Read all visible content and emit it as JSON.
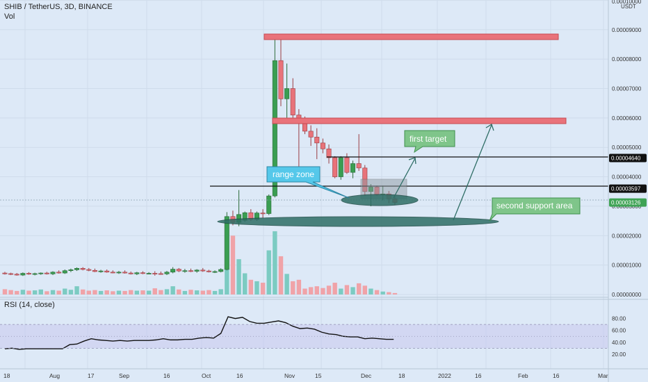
{
  "header": {
    "title": "SHIB / TetherUS, 3D, BINANCE",
    "vol_label": "Vol",
    "currency": "USDT"
  },
  "rsi": {
    "label": "RSI (14, close)"
  },
  "colors": {
    "up": "#3a9e52",
    "down": "#e8737a",
    "up_vol": "#7ccbc2",
    "down_vol": "#f0a3a8",
    "rsi_band": "#c9c9ee",
    "bg": "#dde9f7",
    "accent_green": "#7fc58a",
    "accent_cyan": "#55c8ea",
    "ellipse": "#2f6e66"
  },
  "chart_data": [
    {
      "type": "candlestick",
      "title": "SHIB / TetherUS, 3D, BINANCE",
      "y_unit": "USDT",
      "price_ticks": [
        "0.00000000",
        "0.00001000",
        "0.00002000",
        "0.00003000",
        "0.00004000",
        "0.00005000",
        "0.00006000",
        "0.00007000",
        "0.00008000",
        "0.00009000",
        "0.00010000"
      ],
      "price_labels": [
        {
          "text": "0.00004640",
          "value": 4.64e-05,
          "style": "dark"
        },
        {
          "text": "0.00003597",
          "value": 3.597e-05,
          "style": "dark"
        },
        {
          "text": "0.00003126",
          "value": 3.126e-05,
          "style": "green"
        }
      ],
      "time_ticks": [
        "18",
        "Aug",
        "17",
        "Sep",
        "16",
        "Oct",
        "16",
        "Nov",
        "15",
        "Dec",
        "18",
        "2022",
        "16",
        "Feb",
        "16",
        "Mar"
      ],
      "candles": [
        [
          7.3e-06,
          7.7e-06,
          6.8e-06,
          7.1e-06
        ],
        [
          7.1e-06,
          7.4e-06,
          6.6e-06,
          6.9e-06
        ],
        [
          6.9e-06,
          7.3e-06,
          6.4e-06,
          6.6e-06
        ],
        [
          6.6e-06,
          7.5e-06,
          6.3e-06,
          7.2e-06
        ],
        [
          7.2e-06,
          7.6e-06,
          6.7e-06,
          6.9e-06
        ],
        [
          6.9e-06,
          7.4e-06,
          6.5e-06,
          7.1e-06
        ],
        [
          7.1e-06,
          7.5e-06,
          6.7e-06,
          7.3e-06
        ],
        [
          7.3e-06,
          7.7e-06,
          6.8e-06,
          7e-06
        ],
        [
          7e-06,
          7.9e-06,
          6.6e-06,
          7.6e-06
        ],
        [
          7.6e-06,
          8.2e-06,
          7.1e-06,
          7.3e-06
        ],
        [
          7.3e-06,
          8.5e-06,
          7e-06,
          8.1e-06
        ],
        [
          8.1e-06,
          8.8e-06,
          7.6e-06,
          8.4e-06
        ],
        [
          8.4e-06,
          9.2e-06,
          8e-06,
          8.9e-06
        ],
        [
          8.9e-06,
          9.3e-06,
          8.2e-06,
          8.5e-06
        ],
        [
          8.5e-06,
          9e-06,
          7.9e-06,
          8.2e-06
        ],
        [
          8.2e-06,
          8.8e-06,
          7.6e-06,
          7.8e-06
        ],
        [
          7.8e-06,
          8.4e-06,
          7.4e-06,
          8e-06
        ],
        [
          8e-06,
          8.5e-06,
          7.4e-06,
          7.6e-06
        ],
        [
          7.6e-06,
          8.2e-06,
          7.2e-06,
          7.4e-06
        ],
        [
          7.4e-06,
          8e-06,
          7e-06,
          7.6e-06
        ],
        [
          7.6e-06,
          8.2e-06,
          7.1e-06,
          7.3e-06
        ],
        [
          7.3e-06,
          7.8e-06,
          6.8e-06,
          7e-06
        ],
        [
          7e-06,
          7.7e-06,
          6.6e-06,
          7.4e-06
        ],
        [
          7.4e-06,
          7.9e-06,
          6.9e-06,
          7.2e-06
        ],
        [
          7.2e-06,
          7.6e-06,
          6.9e-06,
          7.2e-06
        ],
        [
          7.2e-06,
          7.9e-06,
          6.4e-06,
          7.1e-06
        ],
        [
          7.1e-06,
          7.8e-06,
          6.7e-06,
          7e-06
        ],
        [
          7e-06,
          8e-06,
          6.6e-06,
          7.6e-06
        ],
        [
          7.6e-06,
          9.3e-06,
          7.2e-06,
          8.6e-06
        ],
        [
          8.6e-06,
          9e-06,
          7.6e-06,
          8e-06
        ],
        [
          8e-06,
          8.7e-06,
          7.4e-06,
          8.1e-06
        ],
        [
          8.1e-06,
          8.8e-06,
          7.6e-06,
          7.9e-06
        ],
        [
          7.9e-06,
          8.6e-06,
          7.4e-06,
          8.3e-06
        ],
        [
          8.3e-06,
          9e-06,
          7.7e-06,
          8e-06
        ],
        [
          8e-06,
          8.4e-06,
          7.5e-06,
          7.7e-06
        ],
        [
          7.7e-06,
          8.2e-06,
          7.3e-06,
          7.8e-06
        ],
        [
          7.8e-06,
          8.9e-06,
          7.5e-06,
          8.5e-06
        ],
        [
          8.5e-06,
          2.8e-05,
          8.2e-06,
          2.65e-05
        ],
        [
          2.65e-05,
          2.85e-05,
          2.35e-05,
          2.45e-05
        ],
        [
          2.45e-05,
          3.55e-05,
          2.32e-05,
          2.72e-05
        ],
        [
          2.52e-05,
          2.82e-05,
          2.47e-05,
          2.78e-05
        ],
        [
          2.78e-05,
          2.9e-05,
          2.5e-05,
          2.55e-05
        ],
        [
          2.55e-05,
          2.82e-05,
          2.5e-05,
          2.77e-05
        ],
        [
          2.77e-05,
          2.9e-05,
          2.6e-05,
          2.75e-05
        ],
        [
          2.75e-05,
          3.4e-05,
          2.7e-05,
          3.35e-05
        ],
        [
          3.35e-05,
          8.8e-05,
          3.3e-05,
          7.95e-05
        ],
        [
          7.95e-05,
          8.85e-05,
          6.4e-05,
          6.65e-05
        ],
        [
          6.65e-05,
          7.85e-05,
          6e-05,
          7e-05
        ],
        [
          7e-05,
          7.35e-05,
          5.9e-05,
          6.1e-05
        ],
        [
          6.1e-05,
          6.3e-05,
          4e-05,
          5.85e-05
        ],
        [
          5.85e-05,
          6.05e-05,
          5.45e-05,
          5.55e-05
        ],
        [
          5.55e-05,
          5.75e-05,
          5.05e-05,
          5.35e-05
        ],
        [
          5.35e-05,
          5.65e-05,
          4.6e-05,
          5.15e-05
        ],
        [
          5.15e-05,
          5.3e-05,
          4.8e-05,
          4.95e-05
        ],
        [
          4.95e-05,
          5.1e-05,
          4.45e-05,
          4.65e-05
        ],
        [
          4.65e-05,
          4.7e-05,
          3.95e-05,
          4e-05
        ],
        [
          4e-05,
          4.7e-05,
          3.9e-05,
          4.65e-05
        ],
        [
          4.65e-05,
          4.8e-05,
          4.1e-05,
          4.15e-05
        ],
        [
          4.15e-05,
          4.55e-05,
          3.95e-05,
          4.45e-05
        ],
        [
          4.45e-05,
          5.45e-05,
          4.2e-05,
          4.3e-05
        ],
        [
          4.3e-05,
          4.4e-05,
          3.35e-05,
          3.5e-05
        ],
        [
          3.5e-05,
          3.75e-05,
          3e-05,
          3.65e-05
        ],
        [
          3.65e-05,
          3.7e-05,
          3.35e-05,
          3.4e-05
        ],
        [
          3.4e-05,
          3.7e-05,
          3.2e-05,
          3.42e-05
        ],
        [
          3.42e-05,
          3.52e-05,
          3.1e-05,
          3.25e-05
        ],
        [
          3.25e-05,
          3.4e-05,
          3.05e-05,
          3.13e-05
        ]
      ],
      "volumes": [
        1.8e-06,
        1.5e-06,
        1.2e-06,
        1.6e-06,
        1.3e-06,
        1.4e-06,
        1.7e-06,
        1.1e-06,
        1.5e-06,
        1.3e-06,
        2e-06,
        1.6e-06,
        2.8e-06,
        1.7e-06,
        1.3e-06,
        1.5e-06,
        1.2e-06,
        1.4e-06,
        1.1e-06,
        1.3e-06,
        1.2e-06,
        1.5e-06,
        1.3e-06,
        1.4e-06,
        1.3e-06,
        2.1e-06,
        1.5e-06,
        1.8e-06,
        2.8e-06,
        1.7e-06,
        1.2e-06,
        1.6e-06,
        1.4e-06,
        1.3e-06,
        1.5e-06,
        1.2e-06,
        1.8e-06,
        9.5e-06,
        2e-05,
        1.2e-05,
        7.2e-06,
        5e-06,
        4.5e-06,
        4e-06,
        1.5e-05,
        2.15e-05,
        1.3e-05,
        7e-06,
        4.5e-06,
        5e-06,
        2e-06,
        2.5e-06,
        2.8e-06,
        2.2e-06,
        3e-06,
        4e-06,
        2e-06,
        3.2e-06,
        2.5e-06,
        3.8e-06,
        3e-06,
        2e-06,
        1.5e-06,
        1e-06,
        8e-07,
        5e-07
      ],
      "rsi_values": [
        29,
        30,
        28,
        29,
        29,
        29,
        29,
        29,
        29,
        36,
        37,
        42,
        46,
        44,
        43,
        42,
        43,
        42,
        43,
        43,
        43,
        44,
        46,
        44,
        44,
        45,
        45,
        47,
        48,
        47,
        55,
        83,
        80,
        82,
        75,
        72,
        72,
        74,
        76,
        73,
        67,
        63,
        64,
        62,
        57,
        54,
        53,
        50,
        49,
        49,
        46,
        47,
        46,
        45,
        45
      ],
      "rsi_ticks": [
        "20.00",
        "40.00",
        "60.00",
        "80.00"
      ],
      "rsi_band": [
        30,
        70
      ]
    }
  ],
  "annotations": {
    "first_target": "first target",
    "range_zone": "range zone",
    "second_support": "second support area"
  }
}
